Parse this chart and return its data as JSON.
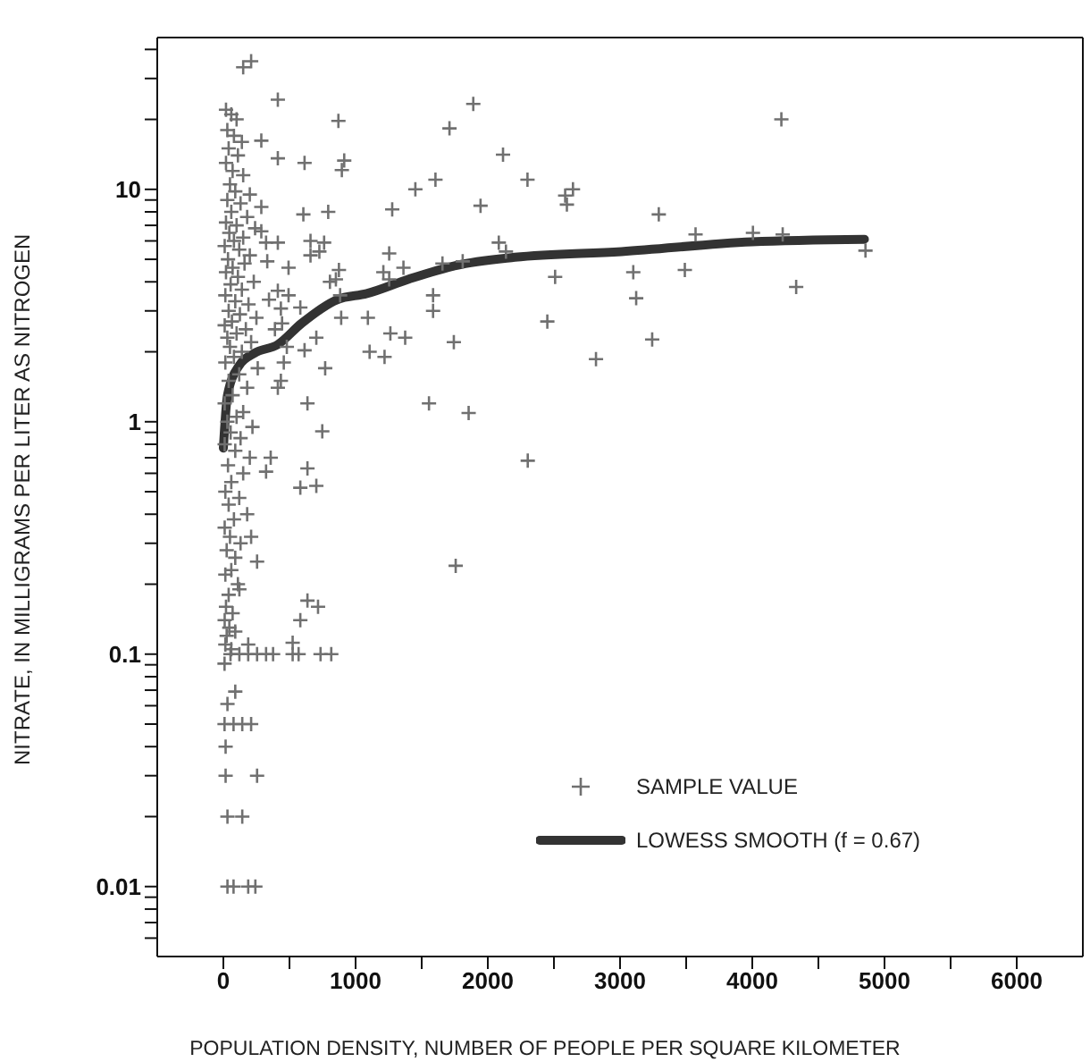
{
  "chart_data": {
    "type": "scatter",
    "xlabel": "POPULATION DENSITY, NUMBER OF PEOPLE PER SQUARE KILOMETER",
    "ylabel": "NITRATE, IN MILLIGRAMS PER LITER AS NITROGEN",
    "log": "y",
    "legend": "bottom right",
    "xlim": [
      -500,
      6500
    ],
    "ylim": [
      0.005,
      45
    ],
    "xticks": [
      0,
      {
        "value": 500,
        "label": null
      },
      1000,
      {
        "value": 1500,
        "label": null
      },
      2000,
      {
        "value": 2500,
        "label": null
      },
      3000,
      {
        "value": 3500,
        "label": null
      },
      4000,
      {
        "value": 4500,
        "label": null
      },
      5000,
      {
        "value": 5500,
        "label": null
      },
      6000
    ],
    "yticks": [
      {
        "value": 0.006,
        "label": null
      },
      {
        "value": 0.007,
        "label": null
      },
      {
        "value": 0.008,
        "label": null
      },
      {
        "value": 0.009,
        "label": null
      },
      0.01,
      {
        "value": 0.02,
        "label": null
      },
      {
        "value": 0.03,
        "label": null
      },
      {
        "value": 0.04,
        "label": null
      },
      {
        "value": 0.05,
        "label": null
      },
      {
        "value": 0.06,
        "label": null
      },
      {
        "value": 0.07,
        "label": null
      },
      {
        "value": 0.08,
        "label": null
      },
      {
        "value": 0.09,
        "label": null
      },
      0.1,
      {
        "value": 0.2,
        "label": null
      },
      {
        "value": 0.3,
        "label": null
      },
      {
        "value": 0.4,
        "label": null
      },
      {
        "value": 0.5,
        "label": null
      },
      {
        "value": 0.6,
        "label": null
      },
      {
        "value": 0.7,
        "label": null
      },
      {
        "value": 0.8,
        "label": null
      },
      {
        "value": 0.9,
        "label": null
      },
      1,
      {
        "value": 2,
        "label": null
      },
      {
        "value": 3,
        "label": null
      },
      {
        "value": 4,
        "label": null
      },
      {
        "value": 5,
        "label": null
      },
      {
        "value": 6,
        "label": null
      },
      {
        "value": 7,
        "label": null
      },
      {
        "value": 8,
        "label": null
      },
      {
        "value": 9,
        "label": null
      },
      10,
      {
        "value": 20,
        "label": null
      },
      {
        "value": 30,
        "label": null
      },
      {
        "value": 40,
        "label": null
      }
    ],
    "series": [
      {
        "name": "SAMPLE VALUE",
        "type": "scatter",
        "marker": "cross",
        "color": "#707070",
        "x": [
          150,
          210,
          412,
          870,
          1890,
          1710,
          287,
          412,
          614,
          914,
          896,
          2115,
          2300,
          1604,
          1452,
          2585,
          2644,
          2598,
          1945,
          1277,
          605,
          793,
          287,
          659,
          762,
          726,
          659,
          287,
          323,
          412,
          2083,
          2137,
          1254,
          332,
          493,
          874,
          851,
          806,
          1210,
          1254,
          1362,
          1657,
          1810,
          2509,
          412,
          493,
          435,
          345,
          883,
          1586,
          1586,
          582,
          891,
          1093,
          2450,
          1263,
          1375,
          703,
          444,
          390,
          480,
          457,
          614,
          1743,
          1106,
          1219,
          2818,
          770,
          435,
          412,
          636,
          1555,
          1855,
          748,
          358,
          323,
          636,
          703,
          2302,
          582,
          255,
          210,
          1757,
          636,
          716,
          582,
          121,
          54,
          121,
          188,
          255,
          323,
          376,
          524,
          569,
          735,
          816,
          188,
          524,
          9,
          90,
          31,
          9,
          77,
          143,
          210,
          17,
          17,
          255,
          31,
          143,
          31,
          77,
          188,
          242,
          4220,
          3293,
          3571,
          4005,
          4230,
          4856,
          3100,
          3490,
          4332,
          3122,
          3243,
          20,
          60,
          100,
          30,
          80,
          140,
          40,
          110,
          20,
          70,
          150,
          50,
          90,
          200,
          30,
          130,
          60,
          180,
          20,
          100,
          240,
          45,
          150,
          80,
          10,
          120,
          200,
          35,
          160,
          70,
          20,
          110,
          230,
          55,
          140,
          15,
          90,
          190,
          40,
          125,
          250,
          65,
          10,
          170,
          100,
          30,
          210,
          50,
          140,
          80,
          15,
          260,
          120,
          40,
          180,
          70,
          10,
          150,
          100,
          30,
          220,
          55,
          130,
          10,
          90,
          200,
          35,
          150,
          60,
          15,
          120,
          40,
          180,
          80,
          10,
          50,
          130,
          25,
          90,
          60,
          15,
          110,
          40,
          20,
          70,
          10,
          45,
          90,
          25,
          15,
          60
        ],
        "values": [
          33.5,
          35.6,
          24.3,
          19.7,
          23.3,
          18.3,
          16.2,
          13.6,
          13,
          13.3,
          12.1,
          14.1,
          11,
          11,
          10,
          9.4,
          10,
          8.6,
          8.5,
          8.2,
          7.8,
          8,
          8.4,
          6,
          5.9,
          5.4,
          5.2,
          6.6,
          5.9,
          5.9,
          5.9,
          5.4,
          5.3,
          4.9,
          4.6,
          4.5,
          4.1,
          4,
          4.4,
          4.1,
          4.6,
          4.8,
          4.9,
          4.2,
          3.66,
          3.5,
          3.07,
          3.35,
          3.5,
          3.5,
          3,
          3.1,
          2.8,
          2.8,
          2.7,
          2.4,
          2.3,
          2.3,
          2.65,
          2.5,
          2.1,
          1.8,
          2.03,
          2.2,
          2,
          1.9,
          1.86,
          1.7,
          1.5,
          1.4,
          1.2,
          1.2,
          1.09,
          0.91,
          0.7,
          0.61,
          0.63,
          0.53,
          0.68,
          0.52,
          0.25,
          0.32,
          0.24,
          0.17,
          0.16,
          0.14,
          0.19,
          0.1,
          0.1,
          0.1,
          0.1,
          0.1,
          0.1,
          0.1,
          0.1,
          0.1,
          0.1,
          0.11,
          0.112,
          0.091,
          0.069,
          0.061,
          0.05,
          0.05,
          0.05,
          0.05,
          0.04,
          0.03,
          0.03,
          0.02,
          0.02,
          0.01,
          0.01,
          0.01,
          0.01,
          20,
          7.8,
          6.4,
          6.5,
          6.4,
          5.45,
          4.4,
          4.5,
          3.8,
          3.4,
          2.26,
          22,
          21,
          20,
          18,
          17,
          16,
          15,
          14,
          13,
          12,
          11.5,
          10.5,
          9.8,
          9.5,
          9,
          8.7,
          8,
          7.6,
          7.2,
          7,
          6.8,
          6.5,
          6.2,
          6,
          5.7,
          5.5,
          5.2,
          5,
          4.8,
          4.6,
          4.4,
          4.2,
          4,
          3.9,
          3.7,
          3.5,
          3.3,
          3.2,
          3,
          2.9,
          2.8,
          2.7,
          2.6,
          2.5,
          2.4,
          2.3,
          2.2,
          2.1,
          2,
          1.9,
          1.8,
          1.7,
          1.6,
          1.5,
          1.4,
          1.3,
          1.2,
          1.1,
          1.05,
          1,
          0.95,
          0.9,
          0.85,
          0.8,
          0.75,
          0.7,
          0.65,
          0.6,
          0.55,
          0.5,
          0.47,
          0.44,
          0.4,
          0.38,
          0.35,
          0.32,
          0.3,
          0.28,
          0.26,
          0.23,
          0.22,
          0.2,
          0.18,
          0.16,
          0.15,
          0.14,
          0.13,
          0.125,
          0.12,
          0.11,
          0.105
        ]
      },
      {
        "name": "LOWESS SMOOTH (f = 0.67)",
        "type": "line",
        "color": "#333333",
        "x": [
          0,
          31,
          121,
          233,
          412,
          591,
          860,
          1085,
          1398,
          1757,
          2204,
          3011,
          3996,
          4848
        ],
        "values": [
          0.77,
          1.3,
          1.75,
          1.97,
          2.15,
          2.65,
          3.35,
          3.56,
          4.1,
          4.7,
          5.1,
          5.4,
          5.95,
          6.1
        ]
      }
    ]
  }
}
